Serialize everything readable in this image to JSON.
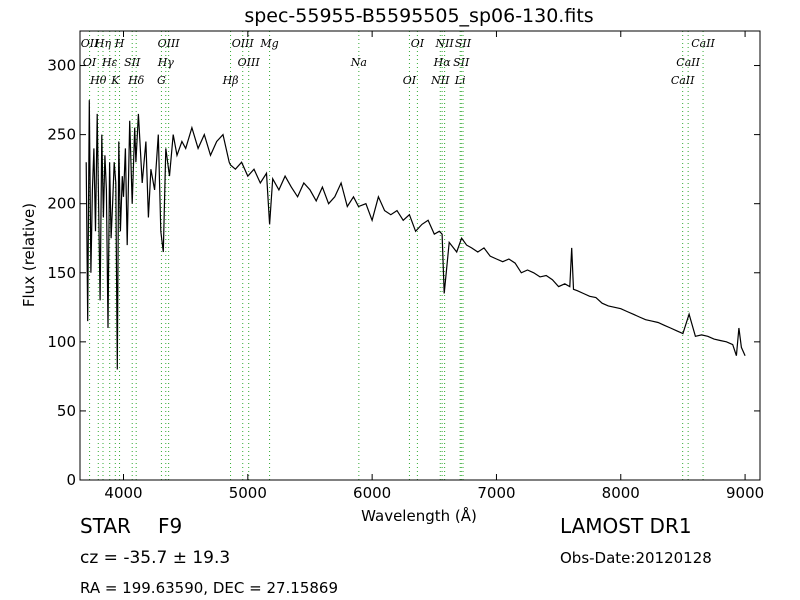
{
  "chart_data": {
    "type": "line",
    "title": "spec-55955-B5595505_sp06-130.fits",
    "xlabel": "Wavelength (Å)",
    "ylabel": "Flux (relative)",
    "xlim": [
      3650,
      9120
    ],
    "ylim": [
      0,
      325
    ],
    "xticks": [
      4000,
      5000,
      6000,
      7000,
      8000,
      9000
    ],
    "yticks": [
      0,
      50,
      100,
      150,
      200,
      250,
      300
    ],
    "grid": false,
    "series": [
      {
        "color": "#000000",
        "x": [
          3700,
          3712,
          3725,
          3738,
          3750,
          3762,
          3775,
          3788,
          3800,
          3812,
          3825,
          3838,
          3850,
          3862,
          3875,
          3888,
          3900,
          3912,
          3925,
          3938,
          3950,
          3962,
          3975,
          3990,
          4000,
          4015,
          4030,
          4050,
          4070,
          4090,
          4100,
          4120,
          4150,
          4180,
          4200,
          4220,
          4250,
          4280,
          4300,
          4320,
          4340,
          4370,
          4400,
          4430,
          4470,
          4500,
          4550,
          4600,
          4650,
          4700,
          4750,
          4800,
          4850,
          4861,
          4900,
          4950,
          5000,
          5050,
          5100,
          5150,
          5175,
          5200,
          5250,
          5300,
          5350,
          5400,
          5450,
          5500,
          5550,
          5600,
          5650,
          5700,
          5750,
          5800,
          5850,
          5890,
          5950,
          6000,
          6050,
          6100,
          6150,
          6200,
          6250,
          6300,
          6350,
          6400,
          6450,
          6500,
          6540,
          6563,
          6580,
          6620,
          6680,
          6720,
          6760,
          6800,
          6850,
          6900,
          6950,
          7000,
          7050,
          7100,
          7150,
          7200,
          7250,
          7300,
          7350,
          7400,
          7450,
          7500,
          7550,
          7590,
          7605,
          7620,
          7650,
          7700,
          7750,
          7800,
          7850,
          7900,
          7950,
          8000,
          8050,
          8100,
          8150,
          8200,
          8250,
          8300,
          8350,
          8400,
          8450,
          8500,
          8550,
          8600,
          8650,
          8700,
          8750,
          8800,
          8850,
          8900,
          8930,
          8950,
          8970,
          9000
        ],
        "y": [
          230,
          115,
          275,
          150,
          210,
          240,
          180,
          265,
          200,
          130,
          250,
          190,
          235,
          210,
          110,
          230,
          175,
          200,
          230,
          215,
          80,
          245,
          180,
          220,
          205,
          240,
          170,
          260,
          200,
          255,
          230,
          265,
          215,
          245,
          190,
          225,
          210,
          250,
          180,
          165,
          240,
          220,
          250,
          235,
          245,
          240,
          255,
          240,
          250,
          235,
          245,
          250,
          230,
          228,
          225,
          230,
          220,
          225,
          215,
          222,
          185,
          218,
          210,
          220,
          212,
          205,
          215,
          210,
          202,
          212,
          200,
          205,
          215,
          198,
          205,
          198,
          200,
          188,
          205,
          195,
          192,
          195,
          188,
          192,
          180,
          185,
          188,
          178,
          180,
          178,
          135,
          172,
          165,
          175,
          170,
          168,
          165,
          168,
          162,
          160,
          158,
          160,
          157,
          150,
          152,
          150,
          147,
          148,
          145,
          140,
          142,
          140,
          168,
          138,
          137,
          135,
          133,
          132,
          128,
          126,
          125,
          124,
          122,
          120,
          118,
          116,
          115,
          114,
          112,
          110,
          108,
          106,
          120,
          104,
          105,
          104,
          102,
          101,
          100,
          98,
          90,
          110,
          96,
          90
        ]
      }
    ],
    "annotations": {
      "top": [
        {
          "text": "OII",
          "x": 3727
        },
        {
          "text": "OI",
          "x": 3727
        },
        {
          "text": "Hθ",
          "x": 3797
        },
        {
          "text": "Hη",
          "x": 3835
        },
        {
          "text": "Hε",
          "x": 3889
        },
        {
          "text": "K",
          "x": 3934
        },
        {
          "text": "H",
          "x": 3968
        },
        {
          "text": "SII",
          "x": 4070
        },
        {
          "text": "Hδ",
          "x": 4102
        },
        {
          "text": "OIII",
          "x": 4363
        },
        {
          "text": "Hγ",
          "x": 4340
        },
        {
          "text": "G",
          "x": 4305
        },
        {
          "text": "OIII",
          "x": 4959
        },
        {
          "text": "OIII",
          "x": 5007
        },
        {
          "text": "Hβ",
          "x": 4861
        },
        {
          "text": "Mg",
          "x": 5175
        },
        {
          "text": "Na",
          "x": 5893
        },
        {
          "text": "OI",
          "x": 6300
        },
        {
          "text": "OI",
          "x": 6364
        },
        {
          "text": "Hα",
          "x": 6563
        },
        {
          "text": "NII",
          "x": 6548
        },
        {
          "text": "NII",
          "x": 6583
        },
        {
          "text": "SII",
          "x": 6717
        },
        {
          "text": "Li",
          "x": 6708
        },
        {
          "text": "SII",
          "x": 6731
        },
        {
          "text": "CaII",
          "x": 8542
        },
        {
          "text": "CaII",
          "x": 8498
        },
        {
          "text": "CaII",
          "x": 8662
        }
      ]
    }
  },
  "info": {
    "class_label": "STAR",
    "subclass_label": "F9",
    "survey": "LAMOST DR1",
    "redshift_text": "cz = -35.7  ± 19.3",
    "obs_date": "Obs-Date:20120128",
    "coords": "RA = 199.63590, DEC = 27.15869"
  },
  "colors": {
    "line": "#000000",
    "annotation_line": "#33aa33"
  }
}
